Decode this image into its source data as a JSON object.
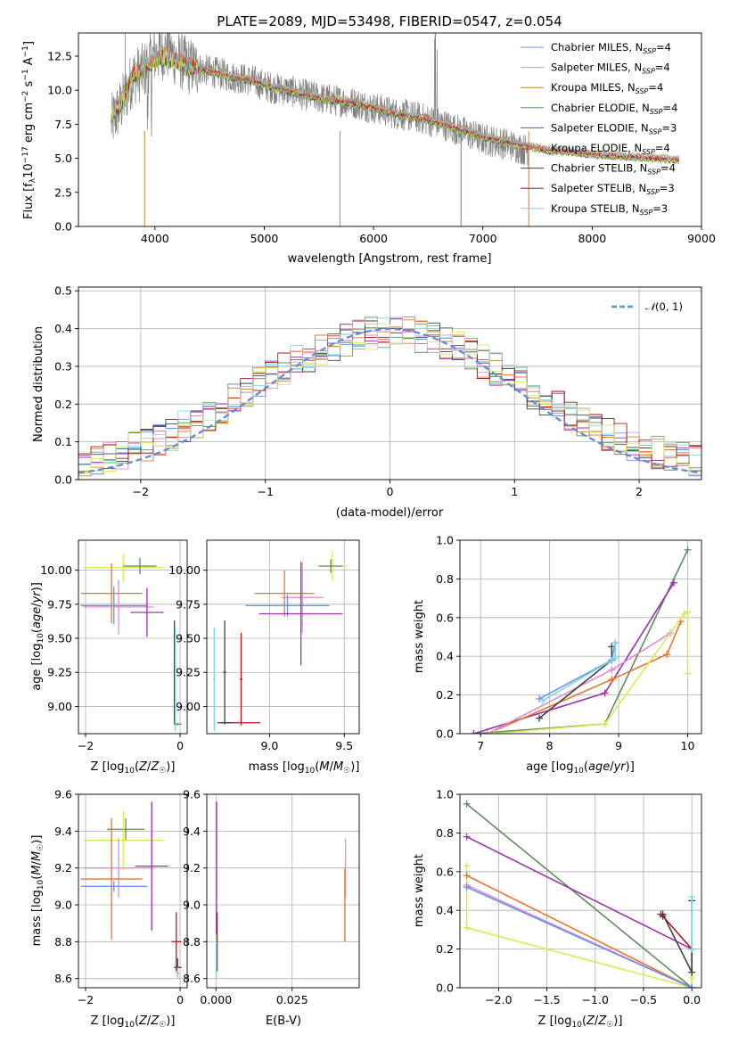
{
  "chart_data": [
    {
      "id": "spectrum",
      "type": "line",
      "title": "PLATE=2089, MJD=53498, FIBERID=0547, z=0.054",
      "xlabel": "wavelength [Angstrom, rest frame]",
      "ylabel": "Flux [f_λ10^{-17} erg cm^{-2} s^{-1} A^{-1}]",
      "xlim": [
        3300,
        9000
      ],
      "ylim": [
        0,
        14.2
      ],
      "xticks": [
        4000,
        5000,
        6000,
        7000,
        8000,
        9000
      ],
      "yticks": [
        0.0,
        2.5,
        5.0,
        7.5,
        10.0,
        12.5
      ],
      "data_color": "#808080",
      "data_profile": {
        "x": [
          3600,
          3700,
          3800,
          3900,
          4000,
          4100,
          4200,
          4300,
          4400,
          4500,
          4700,
          4900,
          5000,
          5200,
          5400,
          5600,
          5800,
          6000,
          6200,
          6400,
          6600,
          6800,
          7000,
          7200,
          7400
        ],
        "y": [
          7.6,
          9.0,
          11.0,
          11.4,
          12.6,
          12.9,
          12.3,
          11.8,
          11.6,
          11.4,
          11.0,
          10.7,
          10.3,
          10.0,
          9.6,
          9.3,
          9.1,
          8.7,
          8.3,
          8.0,
          7.6,
          7.0,
          6.4,
          6.1,
          5.6
        ]
      },
      "model_profile": {
        "x": [
          3600,
          3700,
          3800,
          3900,
          4000,
          4100,
          4200,
          4300,
          4400,
          4500,
          4700,
          4900,
          5000,
          5200,
          5400,
          5600,
          5800,
          6000,
          6200,
          6400,
          6600,
          6800,
          7000,
          7200,
          7400,
          7600,
          7800,
          8000,
          8200,
          8400,
          8600,
          8800
        ],
        "y": [
          8.2,
          9.2,
          11.2,
          11.6,
          12.3,
          12.5,
          12.2,
          11.7,
          11.6,
          11.4,
          11.0,
          10.7,
          10.4,
          10.0,
          9.6,
          9.3,
          9.1,
          8.7,
          8.3,
          8.0,
          7.6,
          7.1,
          6.6,
          6.2,
          5.9,
          5.6,
          5.5,
          5.3,
          5.2,
          5.1,
          5.0,
          4.9
        ]
      },
      "series": [
        {
          "name": "Chabrier MILES, N_SSP=4",
          "color": "#6495ed"
        },
        {
          "name": "Salpeter MILES, N_SSP=4",
          "color": "#e08bd0"
        },
        {
          "name": "Kroupa MILES, N_SSP=4",
          "color": "#c8821e"
        },
        {
          "name": "Chabrier ELODIE, N_SSP=4",
          "color": "#5f8b5f"
        },
        {
          "name": "Salpeter ELODIE, N_SSP=3",
          "color": "#9b30b0"
        },
        {
          "name": "Kroupa ELODIE, N_SSP=4",
          "color": "#e8742c"
        },
        {
          "name": "Chabrier STELIB, N_SSP=4",
          "color": "#404040"
        },
        {
          "name": "Salpeter STELIB, N_SSP=3",
          "color": "#b01818"
        },
        {
          "name": "Kroupa STELIB, N_SSP=3",
          "color": "#7fd8e0"
        }
      ],
      "extra_color": "#d8ec50",
      "legend": "top-right"
    },
    {
      "id": "residuals",
      "type": "line",
      "xlabel": "(data-model)/error",
      "ylabel": "Normed distribution",
      "xlim": [
        -2.5,
        2.5
      ],
      "ylim": [
        0,
        0.51
      ],
      "xticks": [
        -2,
        -1,
        0,
        1,
        2
      ],
      "yticks": [
        0.0,
        0.1,
        0.2,
        0.3,
        0.4,
        0.5
      ],
      "reference_curve": {
        "name": "N(0,1)",
        "label_main": "𝒩",
        "label_args": "(0, 1)",
        "mean": 0,
        "sigma": 1,
        "color": "#5b8fd8"
      },
      "bin_edges_range": [
        -2.5,
        2.5
      ],
      "n_bins": 50,
      "legend": "top-right"
    },
    {
      "id": "z_vs_age",
      "type": "scatter",
      "xlabel": "Z",
      "xlabel_unit": "[log10(Z/Z☉)]",
      "ylabel": "age",
      "ylabel_unit": "[log10(age/yr)]",
      "xlim": [
        -2.15,
        0.15
      ],
      "ylim": [
        8.8,
        10.22
      ],
      "xticks": [
        -2,
        0
      ],
      "yticks": [
        9.0,
        9.25,
        9.5,
        9.75,
        10.0
      ],
      "crosses": [
        {
          "color": "#d8ec50",
          "x": -1.2,
          "xerr": 0.85,
          "y": 10.02,
          "yerr": 0.1
        },
        {
          "color": "#5f8b5f",
          "x": -0.85,
          "xerr": 0.35,
          "y": 10.03,
          "yerr": 0.06
        },
        {
          "color": "#e8742c",
          "x": -1.45,
          "xerr": 0.65,
          "y": 9.83,
          "yerr": 0.22
        },
        {
          "color": "#6495ed",
          "x": -1.4,
          "xerr": 0.7,
          "y": 9.74,
          "yerr": 0.14
        },
        {
          "color": "#e08bd0",
          "x": -1.3,
          "xerr": 0.75,
          "y": 9.73,
          "yerr": 0.2
        },
        {
          "color": "#9b30b0",
          "x": -0.7,
          "xerr": 0.35,
          "y": 9.69,
          "yerr": 0.18
        },
        {
          "color": "#404040",
          "x": -0.12,
          "xerr": 0.01,
          "y": 9.25,
          "yerr": 0.38
        },
        {
          "color": "#7fd8e0",
          "x": -0.1,
          "xerr": 0.01,
          "y": 9.2,
          "yerr": 0.38
        },
        {
          "color": "#808080",
          "x": -0.05,
          "xerr": 0.08,
          "y": 8.87,
          "yerr": 0.01
        }
      ]
    },
    {
      "id": "mass_vs_age",
      "type": "scatter",
      "xlabel": "mass",
      "xlabel_unit": "[log10(M/M☉)]",
      "ylabel": "",
      "xlim": [
        8.58,
        9.6
      ],
      "ylim": [
        8.8,
        10.22
      ],
      "xticks": [
        9.0,
        9.5
      ],
      "yticks": [
        9.0,
        9.25,
        9.5,
        9.75,
        10.0
      ],
      "crosses": [
        {
          "color": "#d8ec50",
          "x": 9.42,
          "xerr": 0.1,
          "y": 10.03,
          "yerr": 0.11
        },
        {
          "color": "#5f8b5f",
          "x": 9.41,
          "xerr": 0.08,
          "y": 10.03,
          "yerr": 0.05
        },
        {
          "color": "#e08bd0",
          "x": 9.22,
          "xerr": 0.14,
          "y": 9.8,
          "yerr": 0.26
        },
        {
          "color": "#e8742c",
          "x": 9.1,
          "xerr": 0.2,
          "y": 9.83,
          "yerr": 0.17
        },
        {
          "color": "#6495ed",
          "x": 9.12,
          "xerr": 0.28,
          "y": 9.74,
          "yerr": 0.08
        },
        {
          "color": "#9b30b0",
          "x": 9.21,
          "xerr": 0.28,
          "y": 9.68,
          "yerr": 0.38
        },
        {
          "color": "#404040",
          "x": 8.7,
          "xerr": 0.01,
          "y": 9.25,
          "yerr": 0.38
        },
        {
          "color": "#7fd8e0",
          "x": 8.63,
          "xerr": 0.01,
          "y": 9.2,
          "yerr": 0.38
        },
        {
          "color": "#b01818",
          "x": 8.81,
          "xerr": 0.01,
          "y": 9.2,
          "yerr": 0.34
        },
        {
          "color": "#b01818",
          "x": 8.81,
          "xerr": 0.13,
          "y": 8.88,
          "yerr": 0.01
        },
        {
          "color": "#404040",
          "x": 8.7,
          "xerr": 0.05,
          "y": 8.88,
          "yerr": 0.01
        }
      ]
    },
    {
      "id": "age_vs_weight",
      "type": "line",
      "xlabel": "age",
      "xlabel_unit": "[log10(age/yr)]",
      "ylabel": "mass weight",
      "xlim": [
        6.7,
        10.2
      ],
      "ylim": [
        0,
        1.0
      ],
      "xticks": [
        7,
        8,
        9,
        10
      ],
      "yticks": [
        0.0,
        0.2,
        0.4,
        0.6,
        0.8,
        1.0
      ],
      "series": [
        {
          "color": "#5f8b5f",
          "x": [
            6.9,
            8.8,
            10.0
          ],
          "y": [
            0.0,
            0.05,
            0.95
          ]
        },
        {
          "color": "#9b30b0",
          "x": [
            6.9,
            8.8,
            9.8
          ],
          "y": [
            0.0,
            0.21,
            0.78
          ]
        },
        {
          "color": "#e8742c",
          "x": [
            7.1,
            8.9,
            9.7,
            9.9
          ],
          "y": [
            0.0,
            0.28,
            0.41,
            0.58
          ]
        },
        {
          "color": "#e08bd0",
          "x": [
            7.1,
            8.9,
            9.75
          ],
          "y": [
            0.0,
            0.33,
            0.52
          ]
        },
        {
          "color": "#d8ec50",
          "x": [
            7.2,
            8.8,
            9.95,
            10.0,
            10.0
          ],
          "y": [
            0.0,
            0.05,
            0.62,
            0.63,
            0.31
          ]
        },
        {
          "color": "#404040",
          "x": [
            7.85,
            8.9,
            8.9
          ],
          "y": [
            0.08,
            0.38,
            0.45
          ]
        },
        {
          "color": "#6495ed",
          "x": [
            7.85,
            8.9,
            8.95
          ],
          "y": [
            0.18,
            0.38,
            0.47
          ]
        },
        {
          "color": "#7fd8e0",
          "x": [
            7.9,
            8.95,
            8.95
          ],
          "y": [
            0.17,
            0.39,
            0.47
          ]
        }
      ]
    },
    {
      "id": "z_vs_mass",
      "type": "scatter",
      "xlabel": "Z",
      "xlabel_unit": "[log10(Z/Z☉)]",
      "ylabel": "mass",
      "ylabel_unit": "[log10(M/M☉)]",
      "xlim": [
        -2.15,
        0.15
      ],
      "ylim": [
        8.55,
        9.6
      ],
      "xticks": [
        -2,
        0
      ],
      "yticks": [
        8.6,
        8.8,
        9.0,
        9.2,
        9.4,
        9.6
      ],
      "crosses": [
        {
          "color": "#5f8b5f",
          "x": -1.15,
          "xerr": 0.4,
          "y": 9.41,
          "yerr": 0.06
        },
        {
          "color": "#d8ec50",
          "x": -1.2,
          "xerr": 0.85,
          "y": 9.35,
          "yerr": 0.16
        },
        {
          "color": "#e08bd0",
          "x": -1.3,
          "xerr": 0.75,
          "y": 9.2,
          "yerr": 0.16
        },
        {
          "color": "#9b30b0",
          "x": -0.6,
          "xerr": 0.35,
          "y": 9.21,
          "yerr": 0.35
        },
        {
          "color": "#e8742c",
          "x": -1.45,
          "xerr": 0.65,
          "y": 9.14,
          "yerr": 0.33
        },
        {
          "color": "#6495ed",
          "x": -1.4,
          "xerr": 0.7,
          "y": 9.1,
          "yerr": 0.03
        },
        {
          "color": "#b01818",
          "x": -0.08,
          "xerr": 0.1,
          "y": 8.8,
          "yerr": 0.16
        },
        {
          "color": "#404040",
          "x": -0.05,
          "xerr": 0.08,
          "y": 8.66,
          "yerr": 0.05
        },
        {
          "color": "#7fd8e0",
          "x": -0.05,
          "xerr": 0.05,
          "y": 8.63,
          "yerr": 0.03
        }
      ]
    },
    {
      "id": "ebv_vs_mass",
      "type": "scatter",
      "xlabel": "E(B-V)",
      "ylabel": "",
      "xlim": [
        -0.003,
        0.047
      ],
      "ylim": [
        8.55,
        9.6
      ],
      "xticks": [
        0.0,
        0.025
      ],
      "xticklabels": [
        "0.000",
        "0.025"
      ],
      "yticks": [
        8.6,
        8.8,
        9.0,
        9.2,
        9.4,
        9.6
      ],
      "crosses": [
        {
          "color": "#d8ec50",
          "x": 0.0003,
          "xerr": 0.0,
          "y": 9.3,
          "yerr": 0.26
        },
        {
          "color": "#9b30b0",
          "x": 0.0002,
          "xerr": 0.0,
          "y": 9.2,
          "yerr": 0.36
        },
        {
          "color": "#b01818",
          "x": 0.0004,
          "xerr": 0.0,
          "y": 8.8,
          "yerr": 0.16
        },
        {
          "color": "#7fd8e0",
          "x": 0.0001,
          "xerr": 0.0,
          "y": 8.7,
          "yerr": 0.1
        },
        {
          "color": "#e08bd0",
          "x": 0.0425,
          "xerr": 0.0,
          "y": 9.2,
          "yerr": 0.16
        },
        {
          "color": "#e8742c",
          "x": 0.0423,
          "xerr": 0.0,
          "y": 9.0,
          "yerr": 0.2
        }
      ]
    },
    {
      "id": "z_vs_weight",
      "type": "line",
      "xlabel": "Z",
      "xlabel_unit": "[log10(Z/Z☉)]",
      "ylabel": "mass weight",
      "xlim": [
        -2.4,
        0.1
      ],
      "ylim": [
        0,
        1.0
      ],
      "xticks": [
        -2.0,
        -1.5,
        -1.0,
        -0.5,
        0.0
      ],
      "xticklabels": [
        "−2.0",
        "−1.5",
        "−1.0",
        "−0.5",
        "0.0"
      ],
      "yticks": [
        0.0,
        0.2,
        0.4,
        0.6,
        0.8,
        1.0
      ],
      "series": [
        {
          "color": "#5f8b5f",
          "x": [
            -2.33,
            0.0
          ],
          "y": [
            0.95,
            0.0
          ]
        },
        {
          "color": "#9b30b0",
          "x": [
            -2.33,
            0.0,
            0.0
          ],
          "y": [
            0.78,
            0.2,
            0.0
          ]
        },
        {
          "color": "#d8ec50",
          "x": [
            -2.33,
            -2.33,
            0.0,
            0.0
          ],
          "y": [
            0.63,
            0.31,
            0.0,
            0.05
          ]
        },
        {
          "color": "#e8742c",
          "x": [
            -2.33,
            0.0
          ],
          "y": [
            0.58,
            0.0
          ]
        },
        {
          "color": "#e08bd0",
          "x": [
            -2.33,
            0.0
          ],
          "y": [
            0.53,
            0.0
          ]
        },
        {
          "color": "#6495ed",
          "x": [
            -2.33,
            0.0
          ],
          "y": [
            0.52,
            0.0
          ]
        },
        {
          "color": "#b01818",
          "x": [
            -0.32,
            -0.3,
            0.0
          ],
          "y": [
            0.38,
            0.37,
            0.2
          ]
        },
        {
          "color": "#404040",
          "x": [
            -0.3,
            0.0,
            0.0
          ],
          "y": [
            0.38,
            0.08,
            0.45
          ]
        },
        {
          "color": "#7fd8e0",
          "x": [
            0.0,
            0.0
          ],
          "y": [
            0.47,
            0.2
          ]
        }
      ]
    }
  ]
}
